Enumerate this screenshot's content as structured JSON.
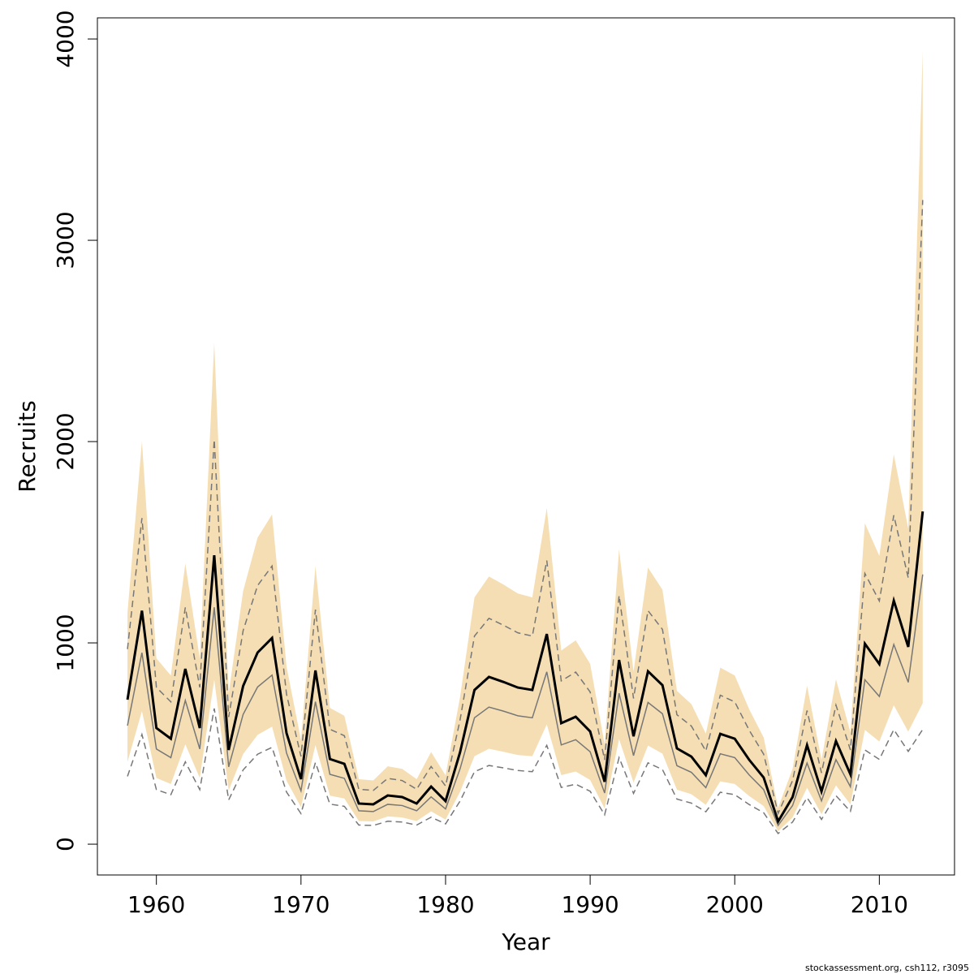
{
  "chart_data": {
    "type": "line",
    "x_label": "Year",
    "y_label": "Recruits",
    "footer": "stockassessment.org, csh112, r3095",
    "x": [
      1958,
      1959,
      1960,
      1961,
      1962,
      1963,
      1964,
      1965,
      1966,
      1967,
      1968,
      1969,
      1970,
      1971,
      1972,
      1973,
      1974,
      1975,
      1976,
      1977,
      1978,
      1979,
      1980,
      1981,
      1982,
      1983,
      1984,
      1985,
      1986,
      1987,
      1988,
      1989,
      1990,
      1991,
      1992,
      1993,
      1994,
      1995,
      1996,
      1997,
      1998,
      1999,
      2000,
      2001,
      2002,
      2003,
      2004,
      2005,
      2006,
      2007,
      2008,
      2009,
      2010,
      2011,
      2012,
      2013
    ],
    "band": {
      "color": "#f5deb3",
      "upper": [
        1149,
        2000,
        923,
        838,
        1394,
        923,
        2490,
        749,
        1258,
        1523,
        1638,
        883,
        517,
        1381,
        677,
        638,
        323,
        317,
        387,
        374,
        323,
        458,
        342,
        730,
        1226,
        1330,
        1290,
        1245,
        1226,
        1670,
        962,
        1013,
        896,
        496,
        1464,
        858,
        1374,
        1264,
        762,
        696,
        549,
        877,
        838,
        670,
        530,
        181,
        374,
        787,
        419,
        819,
        555,
        1594,
        1432,
        1936,
        1568,
        3940
      ],
      "lower": [
        409,
        661,
        329,
        299,
        496,
        329,
        818,
        267,
        448,
        543,
        584,
        315,
        184,
        492,
        241,
        227,
        115,
        113,
        138,
        133,
        115,
        163,
        122,
        260,
        437,
        474,
        459,
        443,
        437,
        595,
        343,
        361,
        319,
        177,
        522,
        306,
        490,
        450,
        271,
        248,
        196,
        312,
        299,
        239,
        189,
        64,
        133,
        280,
        149,
        292,
        198,
        568,
        510,
        690,
        559,
        700
      ]
    },
    "series": [
      {
        "color": "#777777",
        "dash": true,
        "values": [
          969,
          1620,
          779,
          707,
          1176,
          779,
          2010,
          632,
          1061,
          1285,
          1382,
          745,
          436,
          1165,
          571,
          539,
          273,
          267,
          327,
          316,
          273,
          386,
          289,
          616,
          1034,
          1122,
          1088,
          1050,
          1034,
          1409,
          811,
          855,
          756,
          419,
          1235,
          724,
          1160,
          1067,
          643,
          587,
          463,
          740,
          707,
          566,
          447,
          153,
          316,
          664,
          354,
          691,
          468,
          1345,
          1208,
          1634,
          1323,
          3200
        ]
      },
      {
        "color": "#777777",
        "dash": true,
        "values": [
          337,
          545,
          271,
          246,
          409,
          271,
          674,
          220,
          369,
          447,
          481,
          259,
          152,
          406,
          199,
          188,
          95,
          93,
          114,
          110,
          95,
          134,
          101,
          214,
          360,
          391,
          379,
          366,
          360,
          491,
          282,
          298,
          263,
          146,
          430,
          252,
          404,
          371,
          224,
          204,
          161,
          258,
          246,
          197,
          156,
          53,
          110,
          231,
          123,
          241,
          163,
          468,
          421,
          569,
          461,
          570
        ]
      },
      {
        "color": "#777777",
        "dash": false,
        "width": 1.5,
        "values": [
          589,
          951,
          473,
          430,
          714,
          473,
          1177,
          384,
          645,
          781,
          840,
          453,
          265,
          708,
          347,
          327,
          166,
          162,
          198,
          192,
          166,
          235,
          175,
          374,
          628,
          681,
          661,
          638,
          628,
          856,
          493,
          519,
          459,
          254,
          750,
          440,
          704,
          648,
          390,
          357,
          281,
          449,
          430,
          344,
          271,
          93,
          192,
          403,
          215,
          420,
          285,
          817,
          734,
          992,
          804,
          1340
        ]
      },
      {
        "color": "#000000",
        "dash": false,
        "width": 3,
        "values": [
          718,
          1160,
          577,
          524,
          871,
          577,
          1435,
          468,
          786,
          952,
          1024,
          552,
          323,
          863,
          423,
          399,
          202,
          198,
          242,
          234,
          202,
          286,
          214,
          456,
          766,
          831,
          806,
          778,
          766,
          1044,
          601,
          633,
          560,
          310,
          915,
          536,
          859,
          790,
          476,
          435,
          343,
          548,
          524,
          419,
          331,
          113,
          234,
          492,
          262,
          512,
          347,
          996,
          895,
          1210,
          980,
          1653
        ]
      }
    ],
    "xlim": [
      1955.92,
      2015.2
    ],
    "ylim": [
      -153,
      4105
    ],
    "xticks": [
      1960,
      1970,
      1980,
      1990,
      2000,
      2010
    ],
    "yticks": [
      0,
      1000,
      2000,
      3000,
      4000
    ]
  }
}
